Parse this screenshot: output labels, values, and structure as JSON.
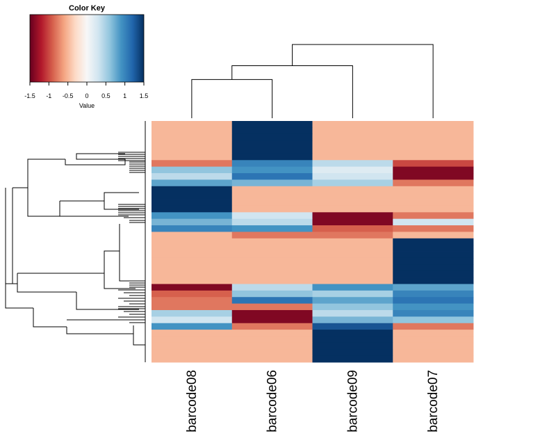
{
  "chart_data": {
    "type": "heatmap",
    "title": "",
    "xlabel": "",
    "ylabel": "",
    "columns": [
      "barcode08",
      "barcode06",
      "barcode09",
      "barcode07"
    ],
    "color_key": {
      "title": "Color Key",
      "label": "Value",
      "min": -1.5,
      "max": 1.5,
      "ticks": [
        "-1.5",
        "-1",
        "-0.5",
        "0",
        "0.5",
        "1",
        "1.5"
      ],
      "low_color": "#67001f",
      "mid_color": "#f7f7f7",
      "high_color": "#053061"
    },
    "column_dendrogram": {
      "merges": [
        {
          "left": "barcode08",
          "right": "barcode06",
          "height": 0.42
        },
        {
          "left": "barcode08+barcode06",
          "right": "barcode09",
          "height": 0.57
        },
        {
          "left": "barcode08+barcode06+barcode09",
          "right": "barcode07",
          "height": 0.8
        }
      ]
    },
    "rows": [
      {
        "values": [
          -0.5,
          1.5,
          -0.5,
          -0.5
        ]
      },
      {
        "values": [
          -0.5,
          1.5,
          -0.5,
          -0.5
        ]
      },
      {
        "values": [
          -0.5,
          1.5,
          -0.5,
          -0.5
        ]
      },
      {
        "values": [
          -0.5,
          1.5,
          -0.5,
          -0.5
        ]
      },
      {
        "values": [
          -0.5,
          1.5,
          -0.5,
          -0.5
        ]
      },
      {
        "values": [
          -0.5,
          1.5,
          -0.5,
          -0.5
        ]
      },
      {
        "values": [
          -0.8,
          1.0,
          0.4,
          -1.0
        ]
      },
      {
        "values": [
          0.6,
          0.9,
          0.2,
          -1.4
        ]
      },
      {
        "values": [
          0.4,
          1.1,
          0.3,
          -1.4
        ]
      },
      {
        "values": [
          0.8,
          0.7,
          0.5,
          -0.8
        ]
      },
      {
        "values": [
          1.5,
          -0.5,
          -0.5,
          -0.5
        ]
      },
      {
        "values": [
          1.5,
          -0.5,
          -0.5,
          -0.5
        ]
      },
      {
        "values": [
          1.5,
          -0.5,
          -0.5,
          -0.5
        ]
      },
      {
        "values": [
          1.5,
          -0.5,
          -0.5,
          -0.5
        ]
      },
      {
        "values": [
          0.9,
          0.3,
          -1.4,
          -0.8
        ]
      },
      {
        "values": [
          0.7,
          0.4,
          -1.4,
          0.3
        ]
      },
      {
        "values": [
          1.0,
          0.9,
          -0.9,
          -0.8
        ]
      },
      {
        "values": [
          -0.5,
          -0.8,
          -0.8,
          -0.5
        ]
      },
      {
        "values": [
          -0.5,
          -0.5,
          -0.5,
          1.5
        ]
      },
      {
        "values": [
          -0.5,
          -0.5,
          -0.5,
          1.5
        ]
      },
      {
        "values": [
          -0.5,
          -0.5,
          -0.5,
          1.5
        ]
      },
      {
        "values": [
          -0.5,
          -0.5,
          -0.5,
          1.5
        ]
      },
      {
        "values": [
          -0.5,
          -0.5,
          -0.5,
          1.5
        ]
      },
      {
        "values": [
          -0.5,
          -0.5,
          -0.5,
          1.5
        ]
      },
      {
        "values": [
          -0.5,
          -0.5,
          -0.5,
          1.5
        ]
      },
      {
        "values": [
          -1.4,
          0.4,
          0.9,
          0.8
        ]
      },
      {
        "values": [
          -0.9,
          0.6,
          0.5,
          1.0
        ]
      },
      {
        "values": [
          -0.8,
          1.1,
          0.8,
          1.1
        ]
      },
      {
        "values": [
          -0.8,
          -0.8,
          0.6,
          0.9
        ]
      },
      {
        "values": [
          0.5,
          -1.4,
          0.4,
          1.0
        ]
      },
      {
        "values": [
          0.3,
          -1.4,
          0.7,
          0.6
        ]
      },
      {
        "values": [
          0.9,
          -0.8,
          1.3,
          -0.8
        ]
      },
      {
        "values": [
          -0.5,
          -0.5,
          1.5,
          -0.5
        ]
      },
      {
        "values": [
          -0.5,
          -0.5,
          1.5,
          -0.5
        ]
      },
      {
        "values": [
          -0.5,
          -0.5,
          1.5,
          -0.5
        ]
      },
      {
        "values": [
          -0.5,
          -0.5,
          1.5,
          -0.5
        ]
      },
      {
        "values": [
          -0.5,
          -0.5,
          1.5,
          -0.5
        ]
      }
    ]
  }
}
